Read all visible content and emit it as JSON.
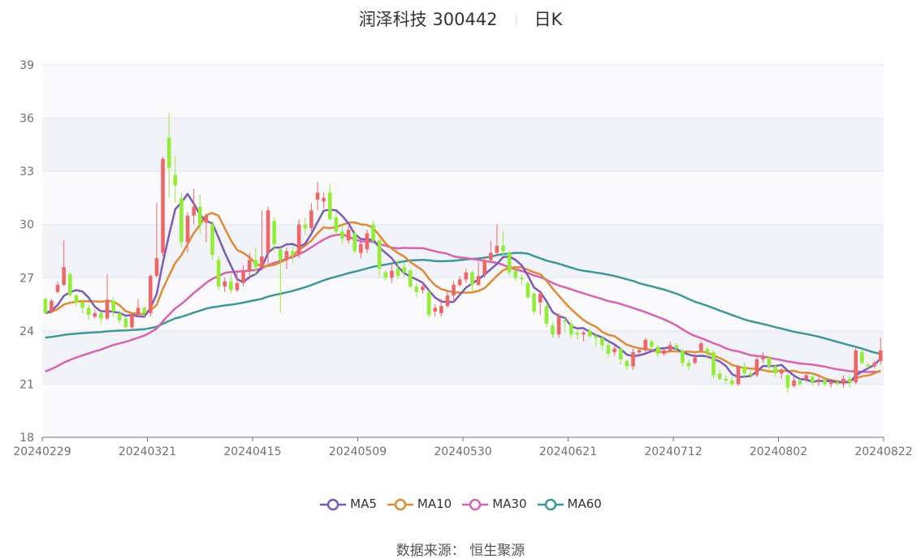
{
  "title": {
    "name": "润泽科技 300442",
    "period": "日K"
  },
  "source": "数据来源：  恒生聚源",
  "colors": {
    "up": "#ee6666",
    "down": "#91ee33",
    "MA5": "#7a5cb8",
    "MA10": "#e08a35",
    "MA30": "#d863ae",
    "MA60": "#3f9898"
  },
  "chart_data": {
    "type": "candlestick",
    "ylim": [
      18,
      39
    ],
    "yticks": [
      18,
      21,
      24,
      27,
      30,
      33,
      36,
      39
    ],
    "xtick_labels": [
      "20240229",
      "20240321",
      "20240415",
      "20240509",
      "20240530",
      "20240621",
      "20240712",
      "20240802",
      "20240822"
    ],
    "legend": [
      "MA5",
      "MA10",
      "MA30",
      "MA60"
    ],
    "candles": [
      [
        25.8,
        25.0,
        25.9,
        25.0
      ],
      [
        25.1,
        25.7,
        25.8,
        25.0
      ],
      [
        26.2,
        26.6,
        26.8,
        26.1
      ],
      [
        26.6,
        27.6,
        29.1,
        26.5
      ],
      [
        27.2,
        26.0,
        27.3,
        25.9
      ],
      [
        26.0,
        25.6,
        26.1,
        25.4
      ],
      [
        25.6,
        25.3,
        25.8,
        25.0
      ],
      [
        25.3,
        24.9,
        25.5,
        24.6
      ],
      [
        24.8,
        25.0,
        25.2,
        24.7
      ],
      [
        25.0,
        24.7,
        25.1,
        24.4
      ],
      [
        24.7,
        25.7,
        27.2,
        24.6
      ],
      [
        25.7,
        25.1,
        25.9,
        24.8
      ],
      [
        25.0,
        24.6,
        25.2,
        24.4
      ],
      [
        24.7,
        24.2,
        24.8,
        24.0
      ],
      [
        24.2,
        24.9,
        25.0,
        24.0
      ],
      [
        24.9,
        25.3,
        25.8,
        24.9
      ],
      [
        25.3,
        25.0,
        25.4,
        24.8
      ],
      [
        25.0,
        27.1,
        27.2,
        24.8
      ],
      [
        27.1,
        28.1,
        31.2,
        27.0
      ],
      [
        28.4,
        33.7,
        33.8,
        28.2
      ],
      [
        34.9,
        33.2,
        36.3,
        31.5
      ],
      [
        32.8,
        32.2,
        33.9,
        31.2
      ],
      [
        31.5,
        29.0,
        31.8,
        28.7
      ],
      [
        29.0,
        30.5,
        30.7,
        28.4
      ],
      [
        30.5,
        31.0,
        32.0,
        30.0
      ],
      [
        31.0,
        30.0,
        31.7,
        29.5
      ],
      [
        30.1,
        30.5,
        30.5,
        29.0
      ],
      [
        30.0,
        28.3,
        30.2,
        28.0
      ],
      [
        28.0,
        26.5,
        28.2,
        26.3
      ],
      [
        26.5,
        26.8,
        27.0,
        26.2
      ],
      [
        26.8,
        26.3,
        27.2,
        26.1
      ],
      [
        26.3,
        26.7,
        27.4,
        26.2
      ],
      [
        26.7,
        27.4,
        27.7,
        26.5
      ],
      [
        27.4,
        28.0,
        28.4,
        26.9
      ],
      [
        28.0,
        27.6,
        28.7,
        27.1
      ],
      [
        27.6,
        28.2,
        30.8,
        27.4
      ],
      [
        28.4,
        30.8,
        31.0,
        27.8
      ],
      [
        30.2,
        28.9,
        30.4,
        28.5
      ],
      [
        28.6,
        28.0,
        28.7,
        25.0
      ],
      [
        28.0,
        28.5,
        28.7,
        27.5
      ],
      [
        28.5,
        28.3,
        28.8,
        27.8
      ],
      [
        28.3,
        30.0,
        30.3,
        28.1
      ],
      [
        30.0,
        29.8,
        30.4,
        29.4
      ],
      [
        29.8,
        30.8,
        31.2,
        29.6
      ],
      [
        31.4,
        31.8,
        32.4,
        30.8
      ],
      [
        31.3,
        31.5,
        31.8,
        30.9
      ],
      [
        31.8,
        30.3,
        32.3,
        30.2
      ],
      [
        30.4,
        29.6,
        30.7,
        29.4
      ],
      [
        29.6,
        29.2,
        29.9,
        28.9
      ],
      [
        29.1,
        29.7,
        29.9,
        28.9
      ],
      [
        29.5,
        28.5,
        29.7,
        28.4
      ],
      [
        28.4,
        28.9,
        29.0,
        28.1
      ],
      [
        28.6,
        29.5,
        29.7,
        28.4
      ],
      [
        30.0,
        29.1,
        30.2,
        28.9
      ],
      [
        29.1,
        27.5,
        29.2,
        27.0
      ],
      [
        27.3,
        27.0,
        27.4,
        26.8
      ],
      [
        27.0,
        27.4,
        27.8,
        26.7
      ],
      [
        27.5,
        27.1,
        28.0,
        26.9
      ],
      [
        27.6,
        27.3,
        27.9,
        27.0
      ],
      [
        27.4,
        26.5,
        27.5,
        26.4
      ],
      [
        26.5,
        26.2,
        26.7,
        25.9
      ],
      [
        26.3,
        26.5,
        26.8,
        26.1
      ],
      [
        26.2,
        24.9,
        26.3,
        24.7
      ],
      [
        25.1,
        25.3,
        25.5,
        24.8
      ],
      [
        25.0,
        25.4,
        25.8,
        24.8
      ],
      [
        25.4,
        26.0,
        26.3,
        25.3
      ],
      [
        26.0,
        26.6,
        26.8,
        25.6
      ],
      [
        26.6,
        26.9,
        27.1,
        26.5
      ],
      [
        26.9,
        27.3,
        27.5,
        26.7
      ],
      [
        27.3,
        26.6,
        27.4,
        26.2
      ],
      [
        26.6,
        27.1,
        27.9,
        26.5
      ],
      [
        27.2,
        28.0,
        28.2,
        27.0
      ],
      [
        28.0,
        28.4,
        29.1,
        27.8
      ],
      [
        28.4,
        28.8,
        30.0,
        28.2
      ],
      [
        28.8,
        28.5,
        29.6,
        28.3
      ],
      [
        28.4,
        27.3,
        28.5,
        27.1
      ],
      [
        27.4,
        27.0,
        27.5,
        26.8
      ],
      [
        27.0,
        26.9,
        27.2,
        26.6
      ],
      [
        26.7,
        25.9,
        26.8,
        25.8
      ],
      [
        26.1,
        25.1,
        26.2,
        24.9
      ],
      [
        25.6,
        26.1,
        26.2,
        24.9
      ],
      [
        25.4,
        24.4,
        25.6,
        24.2
      ],
      [
        24.3,
        23.8,
        24.5,
        23.6
      ],
      [
        23.8,
        24.8,
        25.0,
        23.6
      ],
      [
        24.6,
        24.5,
        24.7,
        23.9
      ],
      [
        24.4,
        23.8,
        24.6,
        23.6
      ],
      [
        23.9,
        23.8,
        24.1,
        23.5
      ],
      [
        23.8,
        23.9,
        24.0,
        23.4
      ],
      [
        24.0,
        23.7,
        24.2,
        23.6
      ],
      [
        23.7,
        23.6,
        23.9,
        23.1
      ],
      [
        23.6,
        23.2,
        23.7,
        22.9
      ],
      [
        23.2,
        22.7,
        23.4,
        22.5
      ],
      [
        22.8,
        23.0,
        23.2,
        22.6
      ],
      [
        23.0,
        22.4,
        23.1,
        22.1
      ],
      [
        22.3,
        22.0,
        22.4,
        21.8
      ],
      [
        22.0,
        22.8,
        23.0,
        21.8
      ],
      [
        22.8,
        22.9,
        23.0,
        22.6
      ],
      [
        22.9,
        23.5,
        23.6,
        22.8
      ],
      [
        23.4,
        23.1,
        23.5,
        22.9
      ],
      [
        23.1,
        22.7,
        23.2,
        22.5
      ],
      [
        22.7,
        22.9,
        23.0,
        22.6
      ],
      [
        22.9,
        23.2,
        23.4,
        22.8
      ],
      [
        23.2,
        23.0,
        23.3,
        22.8
      ],
      [
        22.9,
        22.2,
        23.0,
        22.0
      ],
      [
        22.2,
        22.0,
        22.4,
        21.8
      ],
      [
        22.2,
        22.5,
        22.7,
        22.1
      ],
      [
        22.9,
        23.3,
        23.4,
        22.8
      ],
      [
        23.0,
        22.8,
        23.1,
        22.4
      ],
      [
        22.8,
        21.5,
        22.9,
        21.3
      ],
      [
        21.6,
        21.3,
        21.8,
        21.2
      ],
      [
        21.3,
        21.2,
        21.5,
        21.0
      ],
      [
        21.2,
        21.0,
        21.4,
        20.9
      ],
      [
        21.0,
        22.0,
        22.1,
        20.9
      ],
      [
        22.0,
        21.6,
        22.2,
        21.4
      ],
      [
        21.6,
        21.5,
        21.8,
        21.3
      ],
      [
        21.5,
        22.4,
        22.5,
        21.4
      ],
      [
        22.4,
        22.6,
        22.8,
        22.2
      ],
      [
        22.5,
        22.0,
        22.6,
        21.7
      ],
      [
        22.0,
        21.6,
        22.1,
        21.4
      ],
      [
        21.6,
        21.8,
        21.9,
        21.3
      ],
      [
        21.5,
        20.8,
        21.6,
        20.5
      ],
      [
        20.9,
        21.2,
        21.4,
        20.8
      ],
      [
        21.2,
        21.0,
        21.3,
        20.9
      ],
      [
        21.3,
        21.5,
        21.6,
        21.1
      ],
      [
        21.4,
        21.1,
        21.6,
        20.9
      ],
      [
        21.1,
        21.2,
        21.5,
        20.9
      ],
      [
        21.2,
        21.0,
        21.3,
        20.9
      ],
      [
        21.0,
        21.1,
        21.2,
        20.8
      ],
      [
        21.1,
        21.0,
        21.2,
        20.9
      ],
      [
        21.0,
        21.3,
        21.5,
        20.8
      ],
      [
        21.3,
        21.1,
        21.5,
        20.8
      ],
      [
        21.1,
        22.9,
        23.1,
        21.0
      ],
      [
        22.8,
        22.2,
        22.9,
        22.1
      ],
      [
        22.1,
        22.0,
        22.2,
        21.9
      ],
      [
        22.0,
        22.2,
        22.3,
        21.9
      ],
      [
        22.3,
        22.9,
        23.6,
        22.1
      ]
    ]
  }
}
